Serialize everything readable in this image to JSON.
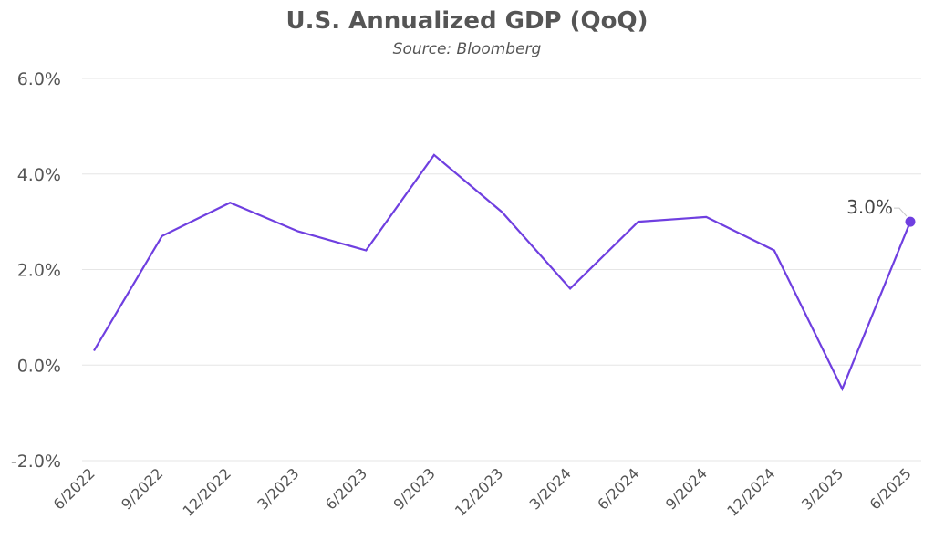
{
  "chart_data": {
    "type": "line",
    "title": "U.S. Annualized GDP (QoQ)",
    "subtitle": "Source: Bloomberg",
    "xlabel": "",
    "ylabel": "",
    "categories": [
      "6/2022",
      "9/2022",
      "12/2022",
      "3/2023",
      "6/2023",
      "9/2023",
      "12/2023",
      "3/2024",
      "6/2024",
      "9/2024",
      "12/2024",
      "3/2025",
      "6/2025"
    ],
    "series": [
      {
        "values": [
          0.3,
          2.7,
          3.4,
          2.8,
          2.4,
          4.4,
          3.2,
          1.6,
          3.0,
          3.1,
          2.4,
          -0.5,
          3.0
        ]
      }
    ],
    "y_ticks": [
      "6.0%",
      "4.0%",
      "2.0%",
      "0.0%",
      "-2.0%"
    ],
    "y_tick_values": [
      6,
      4,
      2,
      0,
      -2
    ],
    "ylim": [
      -2,
      6
    ],
    "grid": true,
    "line_color": "#6f3fe0",
    "last_point_label": "3.0%"
  }
}
